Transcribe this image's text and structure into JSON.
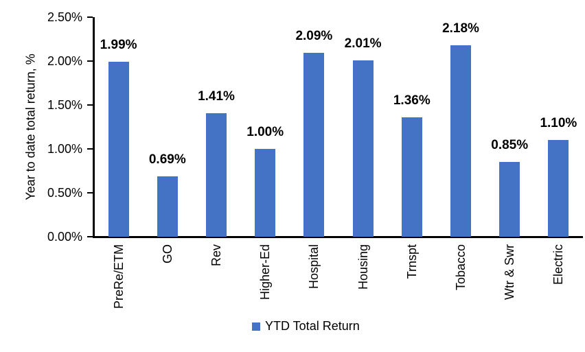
{
  "chart_data": {
    "type": "bar",
    "title": "",
    "categories": [
      "PreRe/ETM",
      "GO",
      "Rev",
      "Higher-Ed",
      "Hospital",
      "Housing",
      "Trnspt",
      "Tobacco",
      "Wtr & Swr",
      "Electric"
    ],
    "values": [
      1.99,
      0.69,
      1.41,
      1.0,
      2.09,
      2.01,
      1.36,
      2.18,
      0.85,
      1.1
    ],
    "data_labels": [
      "1.99%",
      "0.69%",
      "1.41%",
      "1.00%",
      "2.09%",
      "2.01%",
      "1.36%",
      "2.18%",
      "0.85%",
      "1.10%"
    ],
    "xlabel": "",
    "ylabel": "Year to date total return, %",
    "ylim": [
      0,
      2.5
    ],
    "ytick_values": [
      0,
      0.5,
      1.0,
      1.5,
      2.0,
      2.5
    ],
    "ytick_labels": [
      "0.00%",
      "0.50%",
      "1.00%",
      "1.50%",
      "2.00%",
      "2.50%"
    ],
    "grid": false,
    "legend": {
      "position": "bottom",
      "entries": [
        {
          "label": "YTD Total Return",
          "color": "#4472C4"
        }
      ]
    },
    "colors": {
      "bar": "#4472C4",
      "axis": "#000000",
      "text": "#000000",
      "background": "#FFFFFF"
    }
  }
}
